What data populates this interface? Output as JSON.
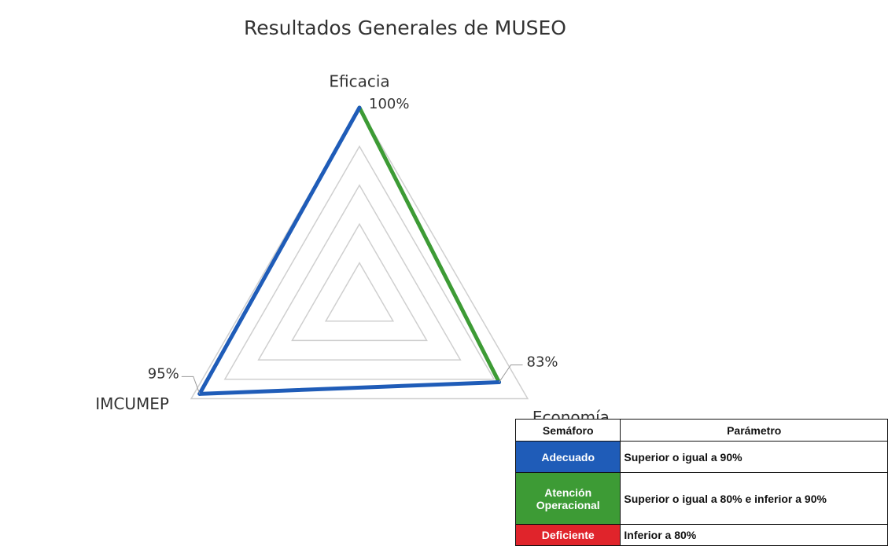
{
  "chart_data": {
    "type": "radar",
    "title": "Resultados Generales de MUSEO",
    "categories": [
      "Eficacia",
      "Economía",
      "IMCUMEP"
    ],
    "values": [
      100,
      83,
      95
    ],
    "value_labels": [
      "100%",
      "83%",
      "95%"
    ],
    "colors": [
      "#1f5cb8",
      "#3d9b35",
      "#1f5cb8"
    ],
    "rlim": [
      0,
      100
    ],
    "rticks": [
      20,
      40,
      60,
      80,
      100
    ],
    "grid": true
  },
  "legend_table": {
    "headers": [
      "Semáforo",
      "Parámetro"
    ],
    "rows": [
      {
        "label": "Adecuado",
        "color": "#1f5cb8",
        "text": "Superior o igual a 90%"
      },
      {
        "label": "Atención Operacional",
        "color": "#3d9b35",
        "text": "Superior o igual a 80% e inferior a 90%"
      },
      {
        "label": "Deficiente",
        "color": "#e0242b",
        "text": "Inferior a 80%"
      }
    ]
  }
}
